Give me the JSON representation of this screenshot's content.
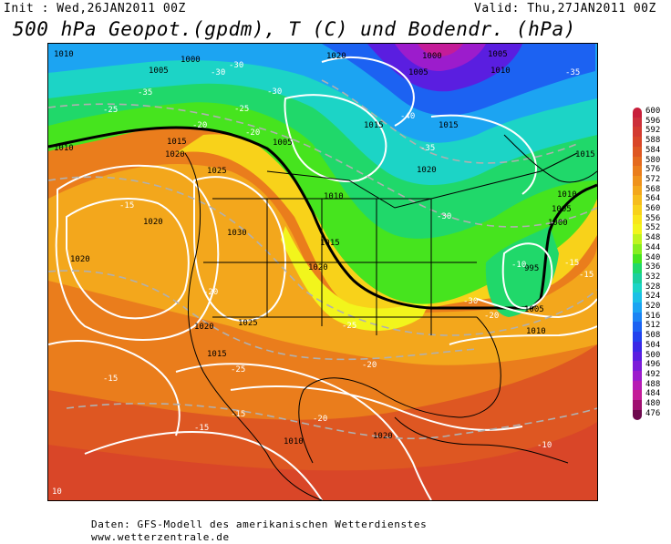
{
  "header": {
    "init_text": "Init : Wed,26JAN2011 00Z",
    "valid_text": "Valid: Thu,27JAN2011 00Z",
    "title": "500 hPa Geopot.(gpdm), T (C) und Bodendr. (hPa)"
  },
  "footer": {
    "source_line": "Daten: GFS-Modell des amerikanischen Wetterdienstes",
    "url_line": "www.wetterzentrale.de"
  },
  "legend": {
    "levels": [
      {
        "value": "600",
        "color": "#c81e3a"
      },
      {
        "value": "596",
        "color": "#cc2f3a"
      },
      {
        "value": "592",
        "color": "#d33a30"
      },
      {
        "value": "588",
        "color": "#d94628"
      },
      {
        "value": "584",
        "color": "#de5722"
      },
      {
        "value": "580",
        "color": "#e46a1e"
      },
      {
        "value": "576",
        "color": "#ea7d1c"
      },
      {
        "value": "572",
        "color": "#ef921c"
      },
      {
        "value": "568",
        "color": "#f3a71c"
      },
      {
        "value": "564",
        "color": "#f6bd1c"
      },
      {
        "value": "560",
        "color": "#f8d21a"
      },
      {
        "value": "556",
        "color": "#f9e61a"
      },
      {
        "value": "552",
        "color": "#f2f51c"
      },
      {
        "value": "548",
        "color": "#bff41e"
      },
      {
        "value": "544",
        "color": "#86ee1e"
      },
      {
        "value": "540",
        "color": "#46e41e"
      },
      {
        "value": "536",
        "color": "#20d86a"
      },
      {
        "value": "532",
        "color": "#1ccf9e"
      },
      {
        "value": "528",
        "color": "#1cd4c6"
      },
      {
        "value": "524",
        "color": "#1cc0e6"
      },
      {
        "value": "520",
        "color": "#1ca4f2"
      },
      {
        "value": "516",
        "color": "#1c84f4"
      },
      {
        "value": "512",
        "color": "#1c62f2"
      },
      {
        "value": "508",
        "color": "#2242ee"
      },
      {
        "value": "504",
        "color": "#3a28e6"
      },
      {
        "value": "500",
        "color": "#5a1ee0"
      },
      {
        "value": "496",
        "color": "#7c1cd8"
      },
      {
        "value": "492",
        "color": "#9c1ccc"
      },
      {
        "value": "488",
        "color": "#b61cb4"
      },
      {
        "value": "484",
        "color": "#c41c98"
      },
      {
        "value": "480",
        "color": "#a01070"
      },
      {
        "value": "476",
        "color": "#6e0a4e"
      }
    ]
  },
  "map": {
    "isobar_labels": [
      "1010",
      "1000",
      "1020",
      "1005",
      "1000",
      "1005",
      "1010",
      "1005",
      "1015",
      "1010",
      "1015",
      "1020",
      "1025",
      "1030",
      "1020",
      "1020",
      "1015",
      "1020",
      "1025",
      "1020",
      "1015",
      "1010",
      "1015",
      "1020",
      "1010",
      "1005",
      "1000",
      "995",
      "1005",
      "1010",
      "1015",
      "1005",
      "1010",
      "1020",
      "10"
    ],
    "temp_labels": [
      "-30",
      "-30",
      "-30",
      "-35",
      "-25",
      "-35",
      "-20",
      "-25",
      "-40",
      "-35",
      "-20",
      "-30",
      "-15",
      "-20",
      "-25",
      "-20",
      "-15",
      "-20",
      "-15",
      "-15",
      "-10",
      "-15",
      "-30",
      "-20",
      "-25",
      "-10",
      "-15"
    ]
  }
}
